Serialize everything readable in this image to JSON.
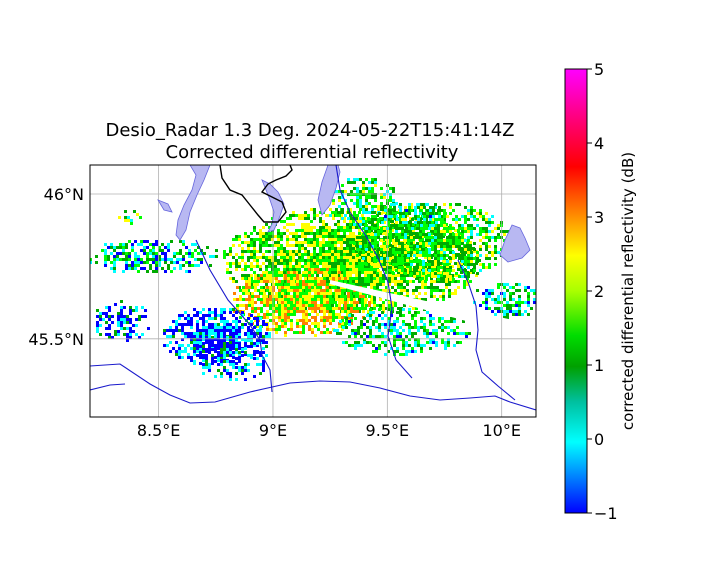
{
  "chart_data": {
    "type": "heatmap",
    "title": "Desio_Radar 1.3 Deg. 2024-05-22T15:41:14Z",
    "subtitle": "Corrected differential reflectivity",
    "x_ticks": [
      "8.5°E",
      "9°E",
      "9.5°E",
      "10°E"
    ],
    "y_ticks": [
      "46°N",
      "45.5°N"
    ],
    "x_tick_values": [
      8.5,
      9.0,
      9.5,
      10.0
    ],
    "y_tick_values": [
      46.0,
      45.5
    ],
    "xlim": [
      8.2,
      10.15
    ],
    "ylim": [
      45.23,
      46.1
    ],
    "grid": true,
    "colorbar": {
      "label": "corrected differential reflectivity (dB)",
      "ticks": [
        "−1",
        "0",
        "1",
        "2",
        "3",
        "4",
        "5"
      ],
      "tick_values": [
        -1,
        0,
        1,
        2,
        3,
        4,
        5
      ],
      "range": [
        -1,
        5
      ],
      "colormap": [
        "#0000ff",
        "#00ffff",
        "#00aa00",
        "#00ff00",
        "#ffff00",
        "#ff8000",
        "#ff0000",
        "#ff00ff"
      ]
    },
    "colors": {
      "lakes": "#b8b8f2",
      "rivers": "#0000cc",
      "border": "#000000"
    }
  }
}
